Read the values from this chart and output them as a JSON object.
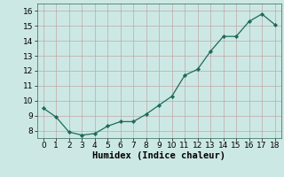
{
  "x": [
    0,
    1,
    2,
    3,
    4,
    5,
    6,
    7,
    8,
    9,
    10,
    11,
    12,
    13,
    14,
    15,
    16,
    17,
    18
  ],
  "y": [
    9.5,
    8.9,
    7.9,
    7.7,
    7.8,
    8.3,
    8.6,
    8.6,
    9.1,
    9.7,
    10.3,
    11.7,
    12.1,
    13.3,
    14.3,
    14.3,
    15.3,
    15.8,
    15.1
  ],
  "xlabel": "Humidex (Indice chaleur)",
  "ylim": [
    7.5,
    16.5
  ],
  "xlim": [
    -0.5,
    18.5
  ],
  "yticks": [
    8,
    9,
    10,
    11,
    12,
    13,
    14,
    15,
    16
  ],
  "xticks": [
    0,
    1,
    2,
    3,
    4,
    5,
    6,
    7,
    8,
    9,
    10,
    11,
    12,
    13,
    14,
    15,
    16,
    17,
    18
  ],
  "line_color": "#1a6b5a",
  "marker_color": "#1a6b5a",
  "bg_color": "#cce8e4",
  "grid_color": "#c0a8a8",
  "xlabel_fontsize": 7.5,
  "tick_fontsize": 6.5
}
